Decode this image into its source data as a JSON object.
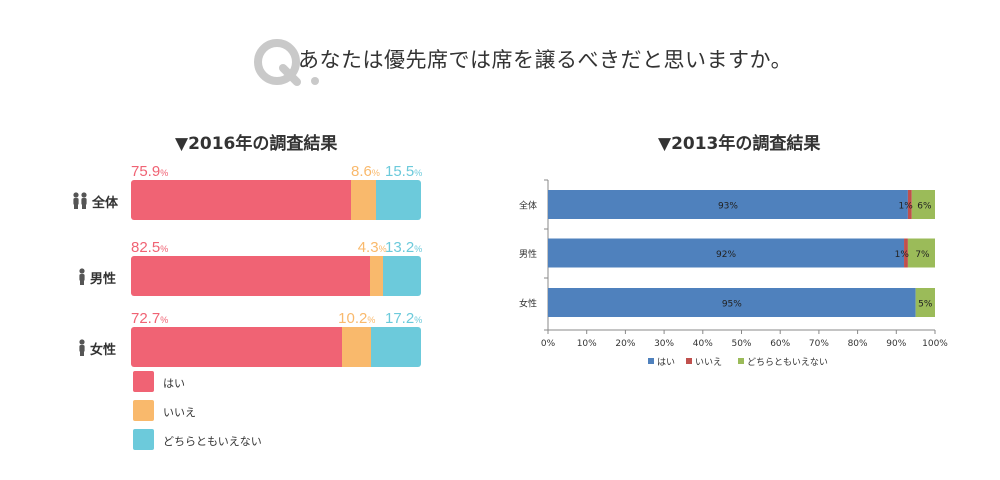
{
  "question": "あなたは優先席では席を譲るべきだと思いますか。",
  "question_mark": "Q",
  "chart_data": [
    {
      "type": "bar",
      "stacked": true,
      "orientation": "horizontal",
      "title": "▼2016年の調査結果",
      "categories": [
        "全体",
        "男性",
        "女性"
      ],
      "series": [
        {
          "name": "はい",
          "values": [
            75.9,
            82.5,
            72.7
          ],
          "color": "#f06374"
        },
        {
          "name": "いいえ",
          "values": [
            8.6,
            4.3,
            10.2
          ],
          "color": "#f9b96c"
        },
        {
          "name": "どちらともいえない",
          "values": [
            15.5,
            13.2,
            17.2
          ],
          "color": "#6ccadb"
        }
      ],
      "labels": [
        [
          "75.9",
          "8.6",
          "15.5"
        ],
        [
          "82.5",
          "4.3",
          "13.2"
        ],
        [
          "72.7",
          "10.2",
          "17.2"
        ]
      ],
      "unit": "%",
      "legend": "bottom-left"
    },
    {
      "type": "bar",
      "stacked": true,
      "orientation": "horizontal",
      "title": "▼2013年の調査結果",
      "categories": [
        "全体",
        "男性",
        "女性"
      ],
      "series": [
        {
          "name": "はい",
          "values": [
            93,
            92,
            95
          ],
          "color": "#4f81bd"
        },
        {
          "name": "いいえ",
          "values": [
            1,
            1,
            0
          ],
          "color": "#c0504d"
        },
        {
          "name": "どちらともいえない",
          "values": [
            6,
            7,
            5
          ],
          "color": "#9bbb59"
        }
      ],
      "labels": [
        [
          "93%",
          "1%",
          "6%"
        ],
        [
          "92%",
          "1%",
          "7%"
        ],
        [
          "95%",
          "",
          "5%"
        ]
      ],
      "xticks": [
        "0%",
        "10%",
        "20%",
        "30%",
        "40%",
        "50%",
        "60%",
        "70%",
        "80%",
        "90%",
        "100%"
      ],
      "xlim": [
        0,
        100
      ],
      "legend": "bottom"
    }
  ]
}
